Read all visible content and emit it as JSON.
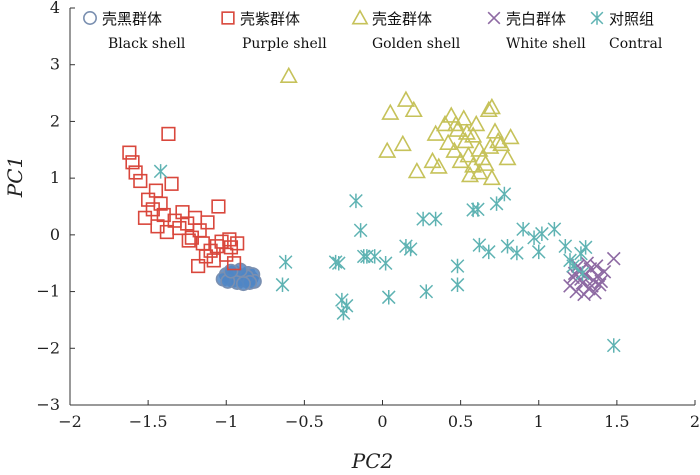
{
  "chart_data": {
    "type": "scatter",
    "title": "",
    "xlabel": "PC2",
    "ylabel": "PC1",
    "xlim": [
      -2,
      2
    ],
    "ylim": [
      -3,
      4
    ],
    "xticks": [
      -2,
      -1.5,
      -1,
      -0.5,
      0,
      0.5,
      1,
      1.5,
      2
    ],
    "yticks": [
      -3,
      -2,
      -1,
      0,
      1,
      2,
      3,
      4
    ],
    "xtick_labels": [
      "−2",
      "−1.5",
      "−1",
      "−0.5",
      "0",
      "0.5",
      "1",
      "1.5",
      "2"
    ],
    "ytick_labels": [
      "−3",
      "−2",
      "−1",
      "0",
      "1",
      "2",
      "3",
      "4"
    ],
    "legend_position": "top",
    "series": [
      {
        "name": "壳黑群体",
        "name_en": "Black shell",
        "marker": "circle",
        "color": "#7a8fb0",
        "fill": "#4f86c6",
        "points": [
          [
            -1.0,
            -0.7
          ],
          [
            -0.98,
            -0.75
          ],
          [
            -0.96,
            -0.8
          ],
          [
            -0.94,
            -0.7
          ],
          [
            -0.92,
            -0.78
          ],
          [
            -0.9,
            -0.72
          ],
          [
            -0.88,
            -0.8
          ],
          [
            -0.86,
            -0.68
          ],
          [
            -0.84,
            -0.76
          ],
          [
            -0.83,
            -0.7
          ],
          [
            -0.82,
            -0.82
          ],
          [
            -0.95,
            -0.66
          ],
          [
            -1.02,
            -0.78
          ],
          [
            -0.93,
            -0.84
          ],
          [
            -0.87,
            -0.74
          ],
          [
            -0.99,
            -0.82
          ],
          [
            -0.91,
            -0.62
          ],
          [
            -0.85,
            -0.84
          ],
          [
            -0.97,
            -0.64
          ],
          [
            -0.89,
            -0.86
          ]
        ]
      },
      {
        "name": "壳紫群体",
        "name_en": "Purple shell",
        "marker": "square",
        "color": "#d9473c",
        "points": [
          [
            -1.62,
            1.45
          ],
          [
            -1.6,
            1.28
          ],
          [
            -1.58,
            1.1
          ],
          [
            -1.55,
            0.95
          ],
          [
            -1.5,
            0.62
          ],
          [
            -1.47,
            0.45
          ],
          [
            -1.45,
            0.78
          ],
          [
            -1.4,
            0.35
          ],
          [
            -1.37,
            1.78
          ],
          [
            -1.35,
            0.9
          ],
          [
            -1.33,
            0.25
          ],
          [
            -1.3,
            0.12
          ],
          [
            -1.28,
            0.4
          ],
          [
            -1.25,
            0.2
          ],
          [
            -1.22,
            -0.05
          ],
          [
            -1.2,
            0.3
          ],
          [
            -1.17,
            0.08
          ],
          [
            -1.15,
            -0.15
          ],
          [
            -1.12,
            0.22
          ],
          [
            -1.1,
            -0.28
          ],
          [
            -1.08,
            -0.45
          ],
          [
            -1.05,
            0.5
          ],
          [
            -1.03,
            -0.12
          ],
          [
            -1.0,
            -0.35
          ],
          [
            -0.97,
            -0.22
          ],
          [
            -0.95,
            -0.5
          ],
          [
            -1.13,
            -0.38
          ],
          [
            -1.06,
            -0.2
          ],
          [
            -0.98,
            -0.08
          ],
          [
            -1.42,
            0.55
          ],
          [
            -1.38,
            0.05
          ],
          [
            -1.52,
            0.3
          ],
          [
            -1.18,
            -0.55
          ],
          [
            -0.93,
            -0.15
          ],
          [
            -1.24,
            -0.1
          ],
          [
            -1.44,
            0.15
          ]
        ]
      },
      {
        "name": "壳金群体",
        "name_en": "Golden shell",
        "marker": "triangle",
        "color": "#c6c25a",
        "points": [
          [
            -0.6,
            2.8
          ],
          [
            0.03,
            1.48
          ],
          [
            0.05,
            2.15
          ],
          [
            0.13,
            1.6
          ],
          [
            0.15,
            2.38
          ],
          [
            0.2,
            2.2
          ],
          [
            0.22,
            1.12
          ],
          [
            0.32,
            1.3
          ],
          [
            0.34,
            1.78
          ],
          [
            0.36,
            1.2
          ],
          [
            0.4,
            1.95
          ],
          [
            0.42,
            1.62
          ],
          [
            0.44,
            2.1
          ],
          [
            0.46,
            1.48
          ],
          [
            0.48,
            1.85
          ],
          [
            0.5,
            1.3
          ],
          [
            0.52,
            2.05
          ],
          [
            0.53,
            1.65
          ],
          [
            0.55,
            1.4
          ],
          [
            0.56,
            1.05
          ],
          [
            0.58,
            1.75
          ],
          [
            0.6,
            1.95
          ],
          [
            0.62,
            1.5
          ],
          [
            0.64,
            1.35
          ],
          [
            0.66,
            1.25
          ],
          [
            0.68,
            2.2
          ],
          [
            0.69,
            1.55
          ],
          [
            0.7,
            2.25
          ],
          [
            0.72,
            1.82
          ],
          [
            0.74,
            1.65
          ],
          [
            0.76,
            1.6
          ],
          [
            0.7,
            1.0
          ],
          [
            0.8,
            1.35
          ],
          [
            0.82,
            1.72
          ],
          [
            0.54,
            1.8
          ],
          [
            0.47,
            1.95
          ],
          [
            0.62,
            1.1
          ],
          [
            0.58,
            1.22
          ]
        ]
      },
      {
        "name": "壳白群体",
        "name_en": "White shell",
        "marker": "x",
        "color": "#8e6aa3",
        "points": [
          [
            1.2,
            -0.9
          ],
          [
            1.22,
            -0.75
          ],
          [
            1.24,
            -1.0
          ],
          [
            1.26,
            -0.65
          ],
          [
            1.28,
            -0.85
          ],
          [
            1.3,
            -0.7
          ],
          [
            1.32,
            -0.95
          ],
          [
            1.33,
            -0.6
          ],
          [
            1.35,
            -0.8
          ],
          [
            1.36,
            -1.02
          ],
          [
            1.38,
            -0.72
          ],
          [
            1.39,
            -0.88
          ],
          [
            1.42,
            -0.65
          ],
          [
            1.25,
            -0.55
          ],
          [
            1.31,
            -0.5
          ],
          [
            1.48,
            -0.42
          ],
          [
            1.29,
            -1.05
          ],
          [
            1.37,
            -0.55
          ],
          [
            1.23,
            -0.68
          ],
          [
            1.34,
            -0.9
          ],
          [
            1.27,
            -0.78
          ],
          [
            1.4,
            -0.82
          ]
        ]
      },
      {
        "name": "对照组",
        "name_en": "Contral",
        "marker": "star",
        "color": "#5fb3b3",
        "points": [
          [
            -1.42,
            1.12
          ],
          [
            -0.62,
            -0.48
          ],
          [
            -0.64,
            -0.88
          ],
          [
            -0.3,
            -0.48
          ],
          [
            -0.28,
            -0.5
          ],
          [
            -0.26,
            -1.15
          ],
          [
            -0.25,
            -1.38
          ],
          [
            -0.23,
            -1.25
          ],
          [
            -0.17,
            0.6
          ],
          [
            -0.14,
            0.08
          ],
          [
            -0.12,
            -0.38
          ],
          [
            -0.1,
            -0.38
          ],
          [
            -0.05,
            -0.38
          ],
          [
            0.02,
            -0.5
          ],
          [
            0.04,
            -1.1
          ],
          [
            0.15,
            -0.2
          ],
          [
            0.18,
            -0.25
          ],
          [
            0.26,
            0.28
          ],
          [
            0.28,
            -1.0
          ],
          [
            0.34,
            0.28
          ],
          [
            0.48,
            -0.55
          ],
          [
            0.48,
            -0.88
          ],
          [
            0.58,
            0.44
          ],
          [
            0.61,
            0.45
          ],
          [
            0.62,
            -0.18
          ],
          [
            0.68,
            -0.3
          ],
          [
            0.73,
            0.55
          ],
          [
            0.78,
            0.72
          ],
          [
            0.8,
            -0.2
          ],
          [
            0.86,
            -0.32
          ],
          [
            0.97,
            -0.05
          ],
          [
            1.0,
            -0.3
          ],
          [
            1.1,
            0.1
          ],
          [
            1.17,
            -0.2
          ],
          [
            1.2,
            -0.45
          ],
          [
            1.22,
            -0.55
          ],
          [
            1.27,
            -0.33
          ],
          [
            1.28,
            -0.68
          ],
          [
            1.3,
            -0.22
          ],
          [
            1.48,
            -1.95
          ],
          [
            1.02,
            0.02
          ],
          [
            0.9,
            0.1
          ]
        ]
      }
    ]
  }
}
